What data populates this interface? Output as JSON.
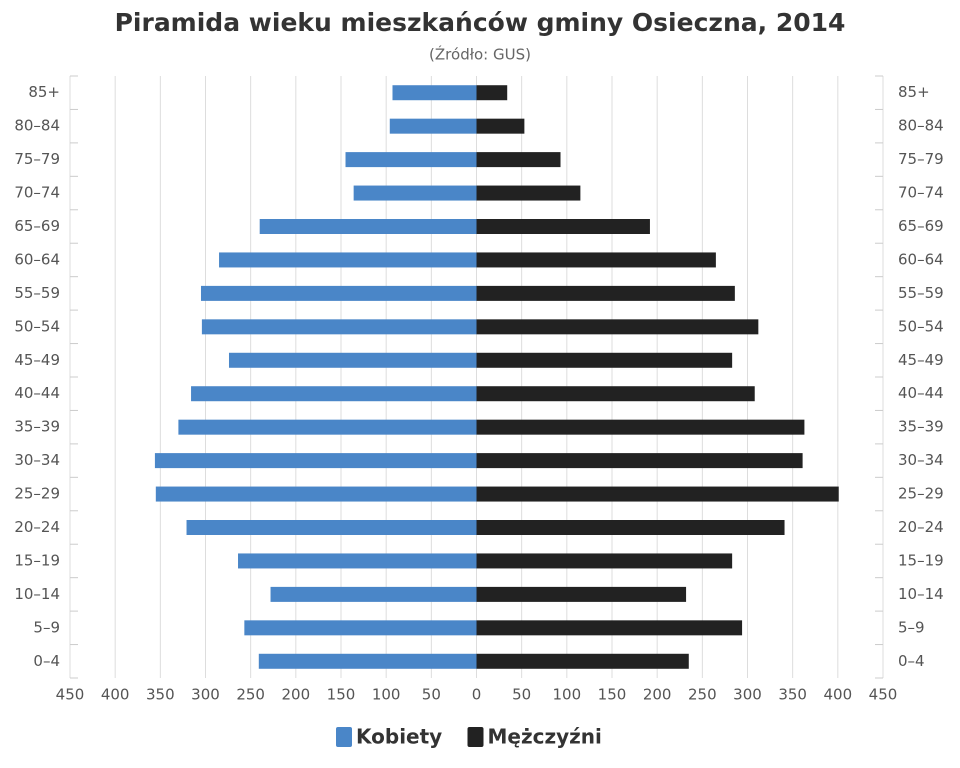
{
  "chart_data": {
    "type": "bar",
    "orientation": "horizontal",
    "title": "Piramida wieku mieszkańców gminy Osieczna, 2014",
    "subtitle": "(Źródło: GUS)",
    "categories": [
      "85+",
      "80–84",
      "75–79",
      "70–74",
      "65–69",
      "60–64",
      "55–59",
      "50–54",
      "45–49",
      "40–44",
      "35–39",
      "30–34",
      "25–29",
      "20–24",
      "15–19",
      "10–14",
      "5–9",
      "0–4"
    ],
    "series": [
      {
        "name": "Kobiety",
        "color": "#4a86c8",
        "values": [
          -93,
          -96,
          -145,
          -136,
          -240,
          -285,
          -305,
          -304,
          -274,
          -316,
          -330,
          -356,
          -355,
          -321,
          -264,
          -228,
          -257,
          -241
        ]
      },
      {
        "name": "Mężczyźni",
        "color": "#222222",
        "values": [
          34,
          53,
          93,
          115,
          192,
          265,
          286,
          312,
          283,
          308,
          363,
          361,
          401,
          341,
          283,
          232,
          294,
          235
        ]
      }
    ],
    "xlim": [
      -450,
      450
    ],
    "xticks": [
      {
        "value": -450,
        "label": "450"
      },
      {
        "value": -400,
        "label": "400"
      },
      {
        "value": -350,
        "label": "350"
      },
      {
        "value": -300,
        "label": "300"
      },
      {
        "value": -250,
        "label": "250"
      },
      {
        "value": -200,
        "label": "200"
      },
      {
        "value": -150,
        "label": "150"
      },
      {
        "value": -100,
        "label": "100"
      },
      {
        "value": -50,
        "label": "50"
      },
      0,
      50,
      100,
      150,
      200,
      250,
      300,
      350,
      400,
      450
    ],
    "grid": true,
    "legend": "bottom"
  }
}
